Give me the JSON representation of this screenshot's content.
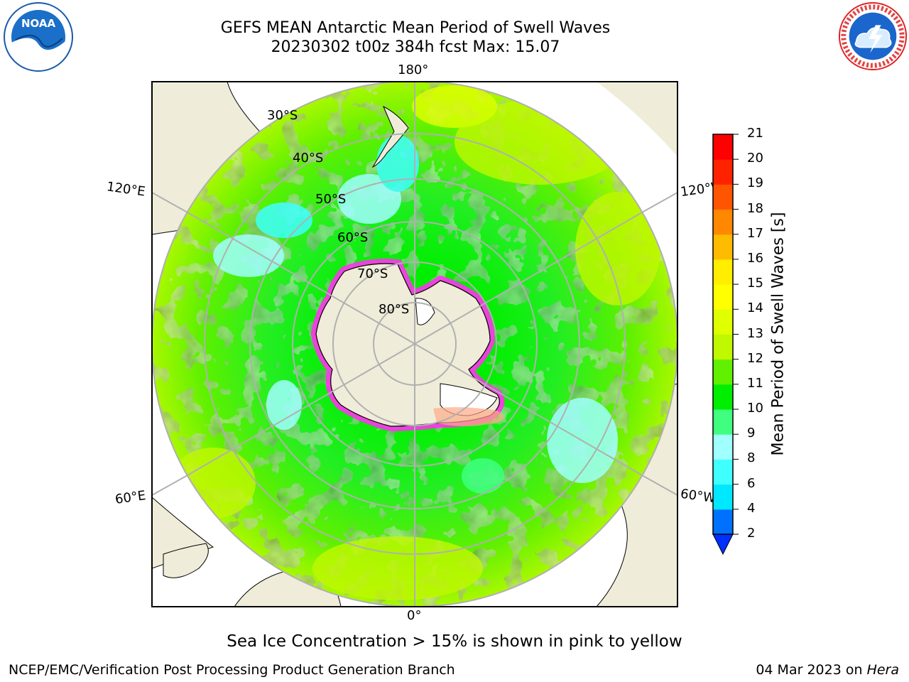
{
  "title": {
    "line1": "GEFS MEAN Antarctic Mean Period of Swell Waves",
    "line2": "20230302 t00z 384h fcst   Max: 15.07"
  },
  "map": {
    "longitude_labels": {
      "top": "180°",
      "bottom": "0°",
      "upper_left": "120°E",
      "lower_left": "60°E",
      "upper_right": "120°W",
      "lower_right": "60°W"
    },
    "latitude_labels": [
      "30°S",
      "40°S",
      "50°S",
      "60°S",
      "70°S",
      "80°S"
    ],
    "colors": {
      "land": "#efedd9",
      "antarctica": "#efedd9",
      "ice_shelf": "#ffffff",
      "sea_ice": "#ff33ee",
      "grid": "#b0b0b0"
    }
  },
  "colorbar": {
    "label": "Mean Period of Swell Waves [s]",
    "ticks": [
      "2",
      "4",
      "6",
      "8",
      "9",
      "10",
      "11",
      "12",
      "13",
      "14",
      "15",
      "16",
      "17",
      "18",
      "19",
      "20",
      "21"
    ],
    "colors": [
      "#0070ff",
      "#00e8ff",
      "#40ffff",
      "#a0ffff",
      "#40ff80",
      "#00ee00",
      "#60f000",
      "#c0f800",
      "#e0ff00",
      "#ffff00",
      "#ffee00",
      "#ffbb00",
      "#ff8800",
      "#ff5500",
      "#ff2200",
      "#ff0000"
    ],
    "extend_color": "#0030ff"
  },
  "note": "Sea Ice Concentration > 15% is shown in pink to yellow",
  "footer": {
    "credit": "NCEP/EMC/Verification Post Processing Product Generation Branch",
    "date": "04 Mar 2023 on",
    "machine": "Hera"
  },
  "logos": {
    "left": "noaa-logo",
    "left_text": "NOAA",
    "right": "nws-logo"
  }
}
